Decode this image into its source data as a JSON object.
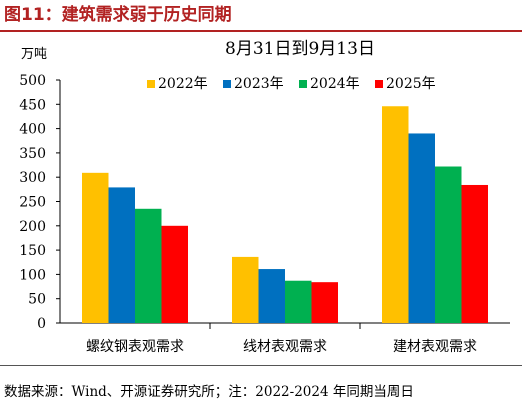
{
  "figure": {
    "title": "图11：建筑需求弱于历史同期",
    "source": "数据来源：Wind、开源证券研究所；注：2022-2024 年同期当周日"
  },
  "chart_data": {
    "type": "bar",
    "title": "8月31日到9月13日",
    "ylabel": "万吨",
    "xlabel": "",
    "ylim": [
      0,
      500
    ],
    "yticks": [
      0,
      50,
      100,
      150,
      200,
      250,
      300,
      350,
      400,
      450,
      500
    ],
    "categories": [
      "螺纹钢表观需求",
      "线材表观需求",
      "建材表观需求"
    ],
    "series": [
      {
        "name": "2022年",
        "color": "#FFC000",
        "values": [
          309,
          136,
          446
        ]
      },
      {
        "name": "2023年",
        "color": "#0070C0",
        "values": [
          279,
          111,
          390
        ]
      },
      {
        "name": "2024年",
        "color": "#00B050",
        "values": [
          235,
          87,
          322
        ]
      },
      {
        "name": "2025年",
        "color": "#FF0000",
        "values": [
          200,
          84,
          284
        ]
      }
    ],
    "legend_position": "top",
    "grid": false
  }
}
